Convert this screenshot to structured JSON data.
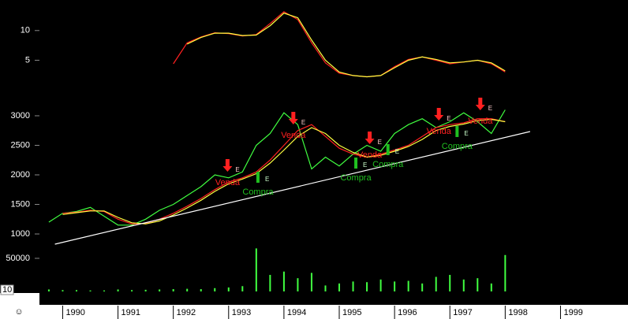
{
  "chart_data": [
    {
      "type": "line",
      "log_scale": true,
      "ylim": [
        2.7,
        20.4
      ],
      "yticks": [
        5,
        10
      ],
      "series": [
        {
          "color": "#ff2020",
          "values": [
            null,
            null,
            null,
            null,
            null,
            null,
            null,
            null,
            null,
            4.6,
            7.5,
            8.6,
            9.5,
            9.3,
            8.8,
            9.1,
            11.8,
            15.5,
            12.9,
            7.5,
            4.7,
            3.7,
            3.5,
            3.4,
            3.5,
            4.3,
            5.1,
            5.4,
            5.0,
            4.6,
            4.8,
            5.0,
            4.6,
            3.8
          ]
        },
        {
          "color": "#ffff40",
          "values": [
            null,
            null,
            null,
            null,
            null,
            null,
            null,
            null,
            null,
            null,
            7.3,
            8.5,
            9.4,
            9.4,
            8.9,
            9.0,
            11.2,
            15.0,
            13.5,
            8.0,
            5.0,
            3.8,
            3.5,
            3.4,
            3.5,
            4.2,
            5.0,
            5.4,
            5.1,
            4.7,
            4.8,
            5.0,
            4.7,
            3.9
          ]
        }
      ]
    },
    {
      "type": "line",
      "x": [
        1989.75,
        1990,
        1990.25,
        1990.5,
        1990.75,
        1991,
        1991.25,
        1991.5,
        1991.75,
        1992,
        1992.25,
        1992.5,
        1992.75,
        1993,
        1993.25,
        1993.5,
        1993.75,
        1994,
        1994.25,
        1994.5,
        1994.75,
        1995,
        1995.25,
        1995.5,
        1995.75,
        1996,
        1996.25,
        1996.5,
        1996.75,
        1997,
        1997.25,
        1997.5,
        1997.75,
        1998
      ],
      "xlim": [
        1989.58,
        2000.22
      ],
      "xticks": [
        1990,
        1991,
        1992,
        1993,
        1994,
        1995,
        1996,
        1997,
        1998,
        1999
      ],
      "ylim": [
        827,
        3453
      ],
      "yticks": [
        1000,
        1500,
        2000,
        2500,
        3000
      ],
      "series": [
        {
          "color": "#40ff40",
          "values": [
            1200,
            1350,
            1380,
            1450,
            1300,
            1150,
            1150,
            1250,
            1400,
            1500,
            1650,
            1800,
            2000,
            1950,
            2050,
            2500,
            2700,
            3050,
            2850,
            2100,
            2300,
            2150,
            2350,
            2500,
            2400,
            2700,
            2850,
            2950,
            2800,
            2900,
            3050,
            2900,
            2700,
            3100
          ]
        },
        {
          "color": "#ff2020",
          "values": [
            null,
            1350,
            1370,
            1400,
            1380,
            1250,
            1170,
            1180,
            1250,
            1350,
            1470,
            1600,
            1750,
            1880,
            1950,
            2050,
            2250,
            2500,
            2750,
            2850,
            2650,
            2450,
            2350,
            2300,
            2350,
            2420,
            2500,
            2650,
            2800,
            2850,
            2880,
            2950,
            2950,
            2900
          ]
        },
        {
          "color": "#ffff40",
          "values": [
            null,
            1330,
            1360,
            1390,
            1390,
            1280,
            1190,
            1170,
            1220,
            1320,
            1440,
            1570,
            1720,
            1850,
            1930,
            2020,
            2200,
            2420,
            2650,
            2800,
            2700,
            2500,
            2380,
            2300,
            2330,
            2400,
            2480,
            2600,
            2750,
            2820,
            2860,
            2920,
            2940,
            2900
          ]
        }
      ],
      "trendline": {
        "color": "#ffffff",
        "x": [
          1989.86,
          1998.45
        ],
        "values": [
          827,
          2733
        ]
      },
      "signals": [
        {
          "label": "Venda",
          "flag": "E",
          "x": 1992.98,
          "y": 2053
        },
        {
          "label": "Compra",
          "flag": "E",
          "x": 1993.53,
          "y": 2053
        },
        {
          "label": "Venda",
          "flag": "E",
          "x": 1994.17,
          "y": 2853
        },
        {
          "label": "Compra",
          "flag": "E",
          "x": 1995.3,
          "y": 2293
        },
        {
          "label": "Venda",
          "flag": "E",
          "x": 1995.55,
          "y": 2520
        },
        {
          "label": "Compra",
          "flag": "E",
          "x": 1995.88,
          "y": 2520
        },
        {
          "label": "Venda",
          "flag": "E",
          "x": 1996.8,
          "y": 2920
        },
        {
          "label": "Compra",
          "flag": "E",
          "x": 1997.13,
          "y": 2827
        },
        {
          "label": "Venda",
          "flag": "E",
          "x": 1997.55,
          "y": 3093
        }
      ]
    },
    {
      "type": "bar",
      "color": "#40ff40",
      "ylim": [
        0,
        69000
      ],
      "yticks": [
        50000
      ],
      "values": [
        3000,
        2000,
        2000,
        1500,
        1500,
        3000,
        2000,
        2500,
        3000,
        3500,
        4000,
        3500,
        5000,
        6000,
        8000,
        65000,
        25000,
        30000,
        20000,
        28000,
        9000,
        12000,
        15000,
        14000,
        18000,
        15000,
        16000,
        12000,
        22000,
        25000,
        18000,
        20000,
        12000,
        55000
      ]
    }
  ],
  "zoom_box": "10",
  "corner_icon": "☺"
}
